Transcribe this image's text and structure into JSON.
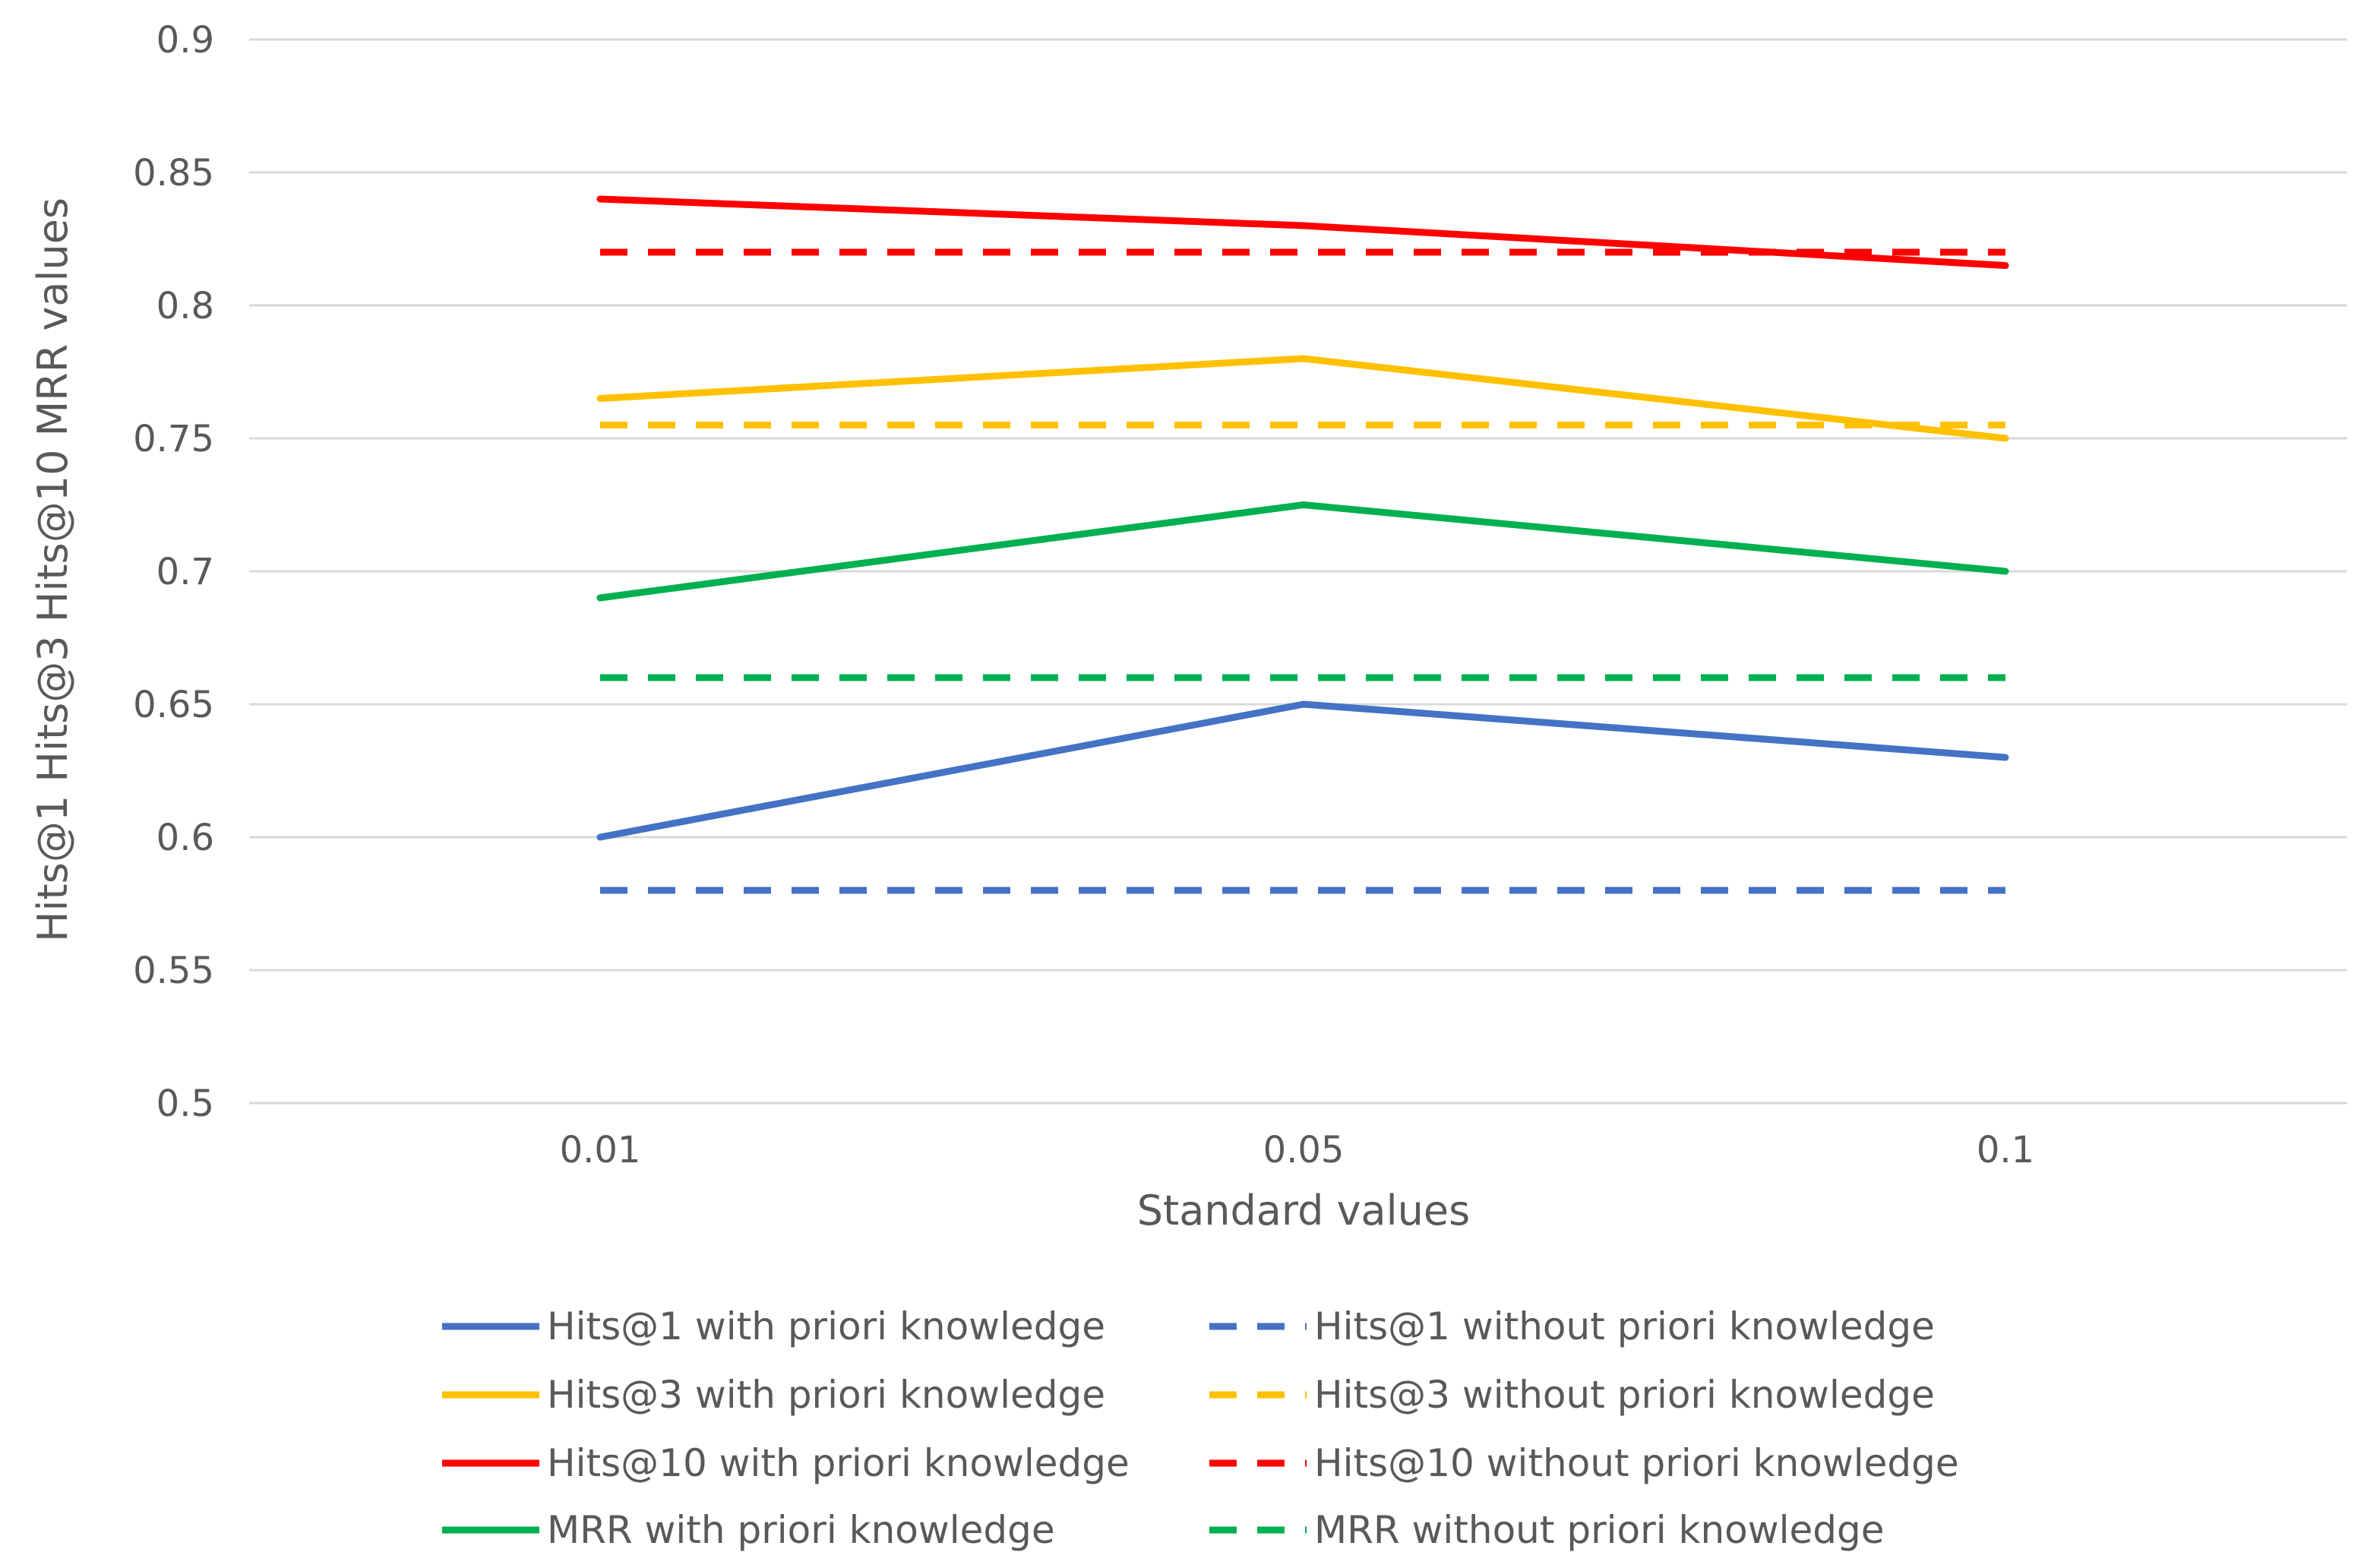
{
  "chart_data": {
    "type": "line",
    "title": "",
    "xlabel": "Standard values",
    "ylabel": "Hits@1 Hits@3 Hits@10 MRR values",
    "categories": [
      "0.01",
      "0.05",
      "0.1"
    ],
    "ylim": [
      0.5,
      0.9
    ],
    "yticks": [
      0.5,
      0.55,
      0.6,
      0.65,
      0.7,
      0.75,
      0.8,
      0.85,
      0.9
    ],
    "ytick_labels": [
      "0.5",
      "0.55",
      "0.6",
      "0.65",
      "0.7",
      "0.75",
      "0.8",
      "0.85",
      "0.9"
    ],
    "grid": true,
    "legend_position": "bottom",
    "series": [
      {
        "name": "Hits@1 with priori knowledge",
        "color": "#4472C4",
        "style": "solid",
        "values": [
          0.6,
          0.65,
          0.63
        ]
      },
      {
        "name": "Hits@1 without priori knowledge",
        "color": "#4472C4",
        "style": "dashed",
        "values": [
          0.58,
          0.58,
          0.58
        ]
      },
      {
        "name": "Hits@3 with priori knowledge",
        "color": "#FFC000",
        "style": "solid",
        "values": [
          0.765,
          0.78,
          0.75
        ]
      },
      {
        "name": "Hits@3 without priori knowledge",
        "color": "#FFC000",
        "style": "dashed",
        "values": [
          0.755,
          0.755,
          0.755
        ]
      },
      {
        "name": "Hits@10 with priori knowledge",
        "color": "#FF0000",
        "style": "solid",
        "values": [
          0.84,
          0.83,
          0.815
        ]
      },
      {
        "name": "Hits@10 without priori knowledge",
        "color": "#FF0000",
        "style": "dashed",
        "values": [
          0.82,
          0.82,
          0.82
        ]
      },
      {
        "name": "MRR with priori knowledge",
        "color": "#00B050",
        "style": "solid",
        "values": [
          0.69,
          0.725,
          0.7
        ]
      },
      {
        "name": "MRR without priori knowledge",
        "color": "#00B050",
        "style": "dashed",
        "values": [
          0.66,
          0.66,
          0.66
        ]
      }
    ]
  }
}
